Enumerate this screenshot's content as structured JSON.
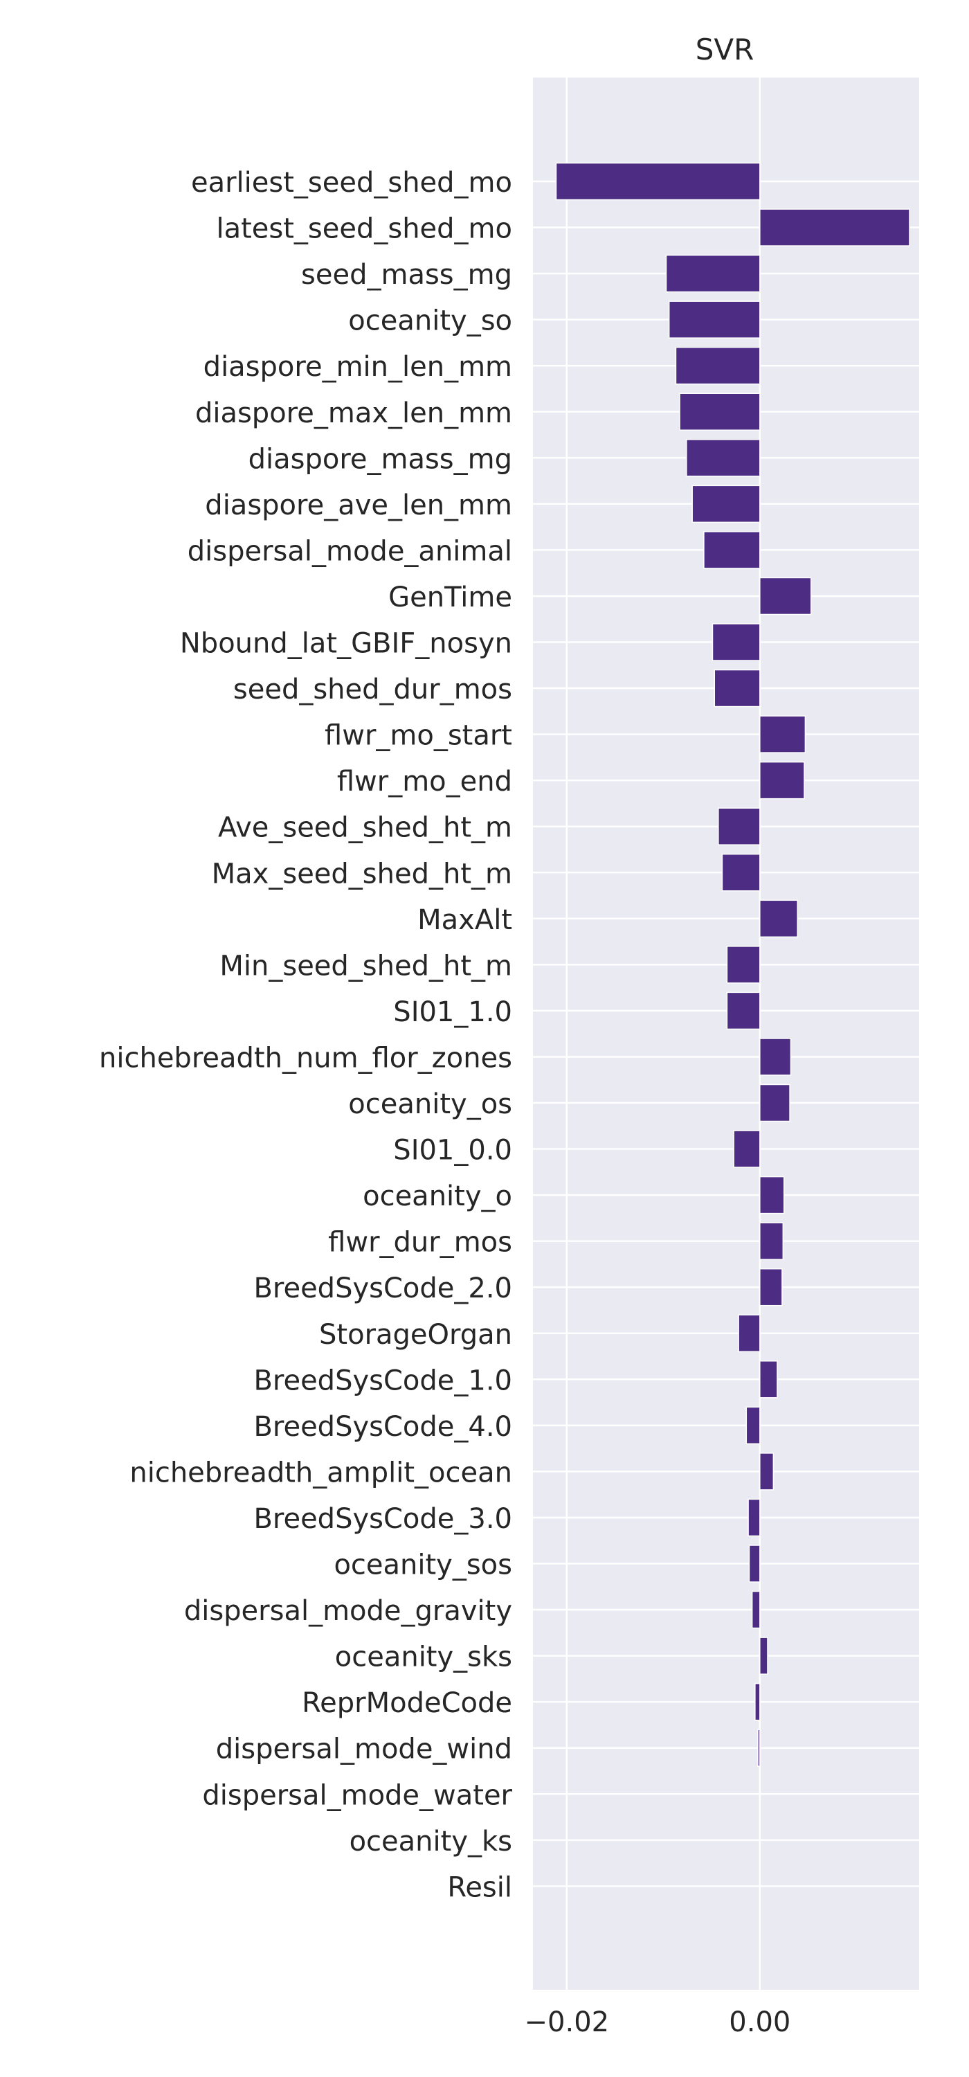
{
  "chart_data": {
    "type": "bar",
    "orientation": "horizontal",
    "title": "SVR",
    "xlabel": "",
    "ylabel": "",
    "xlim": [
      -0.0235,
      0.0165
    ],
    "xticks": [
      -0.02,
      0.0
    ],
    "xtick_labels": [
      "−0.02",
      "0.00"
    ],
    "grid": true,
    "bar_color": "#4c2d83",
    "background_color": "#eaeaf2",
    "categories": [
      "earliest_seed_shed_mo",
      "latest_seed_shed_mo",
      "seed_mass_mg",
      "oceanity_so",
      "diaspore_min_len_mm",
      "diaspore_max_len_mm",
      "diaspore_mass_mg",
      "diaspore_ave_len_mm",
      "dispersal_mode_animal",
      "GenTime",
      "Nbound_lat_GBIF_nosyn",
      "seed_shed_dur_mos",
      "flwr_mo_start",
      "flwr_mo_end",
      "Ave_seed_shed_ht_m",
      "Max_seed_shed_ht_m",
      "MaxAlt",
      "Min_seed_shed_ht_m",
      "SI01_1.0",
      "nichebreadth_num_flor_zones",
      "oceanity_os",
      "SI01_0.0",
      "oceanity_o",
      "flwr_dur_mos",
      "BreedSysCode_2.0",
      "StorageOrgan",
      "BreedSysCode_1.0",
      "BreedSysCode_4.0",
      "nichebreadth_amplit_ocean",
      "BreedSysCode_3.0",
      "oceanity_sos",
      "dispersal_mode_gravity",
      "oceanity_sks",
      "ReprModeCode",
      "dispersal_mode_wind",
      "dispersal_mode_water",
      "oceanity_ks",
      "Resil"
    ],
    "values": [
      -0.0211,
      0.0155,
      -0.0097,
      -0.0094,
      -0.0087,
      -0.0083,
      -0.0076,
      -0.007,
      -0.0058,
      0.0053,
      -0.0049,
      -0.0047,
      0.0047,
      0.0046,
      -0.0043,
      -0.0039,
      0.0039,
      -0.0034,
      -0.0034,
      0.0032,
      0.0031,
      -0.0027,
      0.0025,
      0.0024,
      0.0023,
      -0.0022,
      0.0018,
      -0.0014,
      0.0014,
      -0.0012,
      -0.0011,
      -0.0008,
      0.0008,
      -0.0005,
      -0.0002,
      0.0,
      0.0,
      0.0
    ]
  }
}
